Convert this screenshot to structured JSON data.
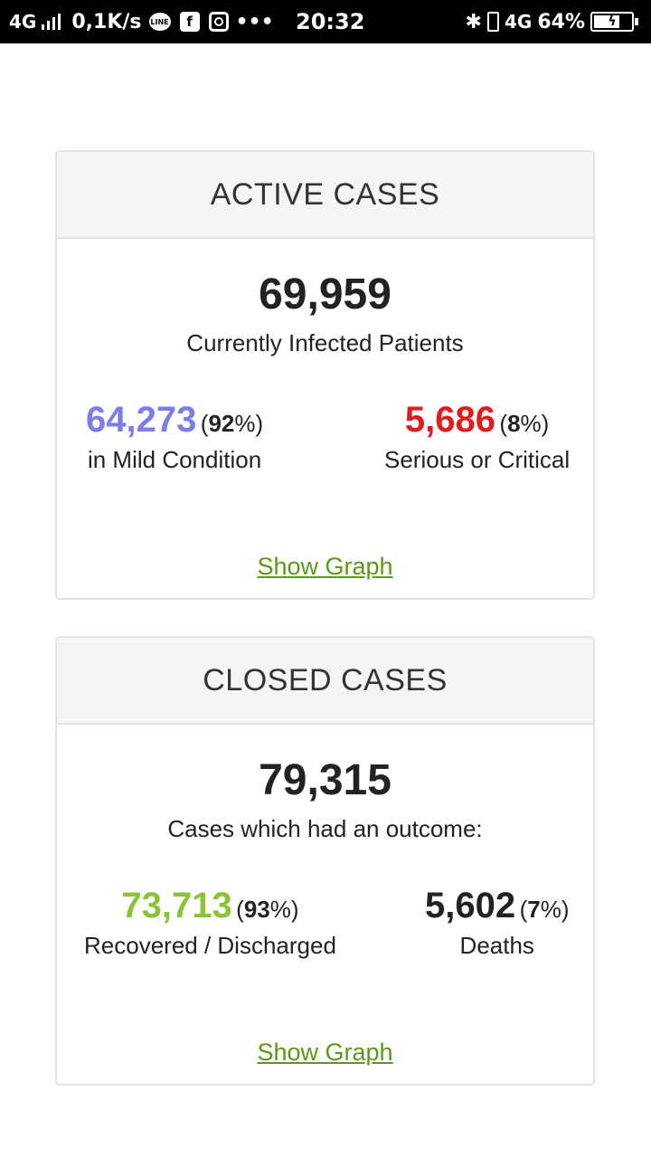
{
  "status_bar": {
    "network": "4G",
    "speed": "0,1K/s",
    "line_label": "LINE",
    "more": "•••",
    "time": "20:32",
    "network_right": "4G",
    "battery": "64%"
  },
  "active_cases": {
    "title": "ACTIVE CASES",
    "total": "69,959",
    "total_label": "Currently Infected Patients",
    "mild": {
      "value": "64,273",
      "pct": "92",
      "label": "in Mild Condition",
      "color": "#7b7ee8"
    },
    "serious": {
      "value": "5,686",
      "pct": "8",
      "label": "Serious or Critical",
      "color": "#e31b1b"
    },
    "link": "Show Graph"
  },
  "closed_cases": {
    "title": "CLOSED CASES",
    "total": "79,315",
    "total_label": "Cases which had an outcome:",
    "recovered": {
      "value": "73,713",
      "pct": "93",
      "label": "Recovered / Discharged",
      "color": "#8ac537"
    },
    "deaths": {
      "value": "5,602",
      "pct": "7",
      "label": "Deaths",
      "color": "#222222"
    },
    "link": "Show Graph"
  }
}
